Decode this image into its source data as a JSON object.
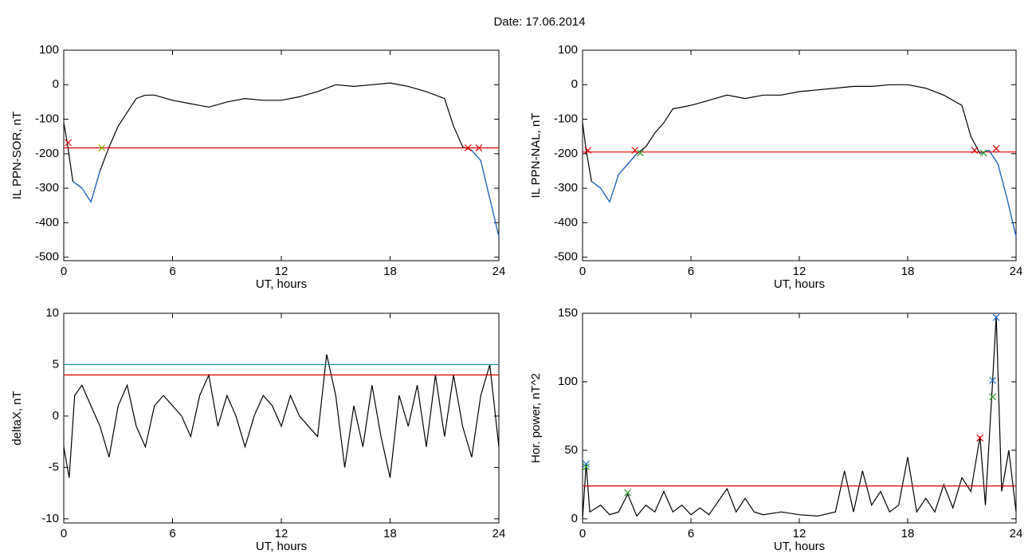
{
  "title": "Date:  17.06.2014",
  "chart_data": [
    {
      "type": "line",
      "xlabel": "UT, hours",
      "ylabel": "IL PPN-SOR, nT",
      "xlim": [
        0,
        24
      ],
      "ylim": [
        -510,
        100
      ],
      "xticks": [
        0,
        6,
        12,
        18,
        24
      ],
      "yticks": [
        100,
        0,
        -100,
        -200,
        -300,
        -400,
        -500
      ],
      "x": [
        0,
        0.2,
        0.5,
        1,
        1.5,
        2,
        2.5,
        3,
        3.5,
        4,
        4.5,
        5,
        6,
        7,
        8,
        9,
        10,
        11,
        12,
        13,
        14,
        15,
        16,
        17,
        18,
        19,
        20,
        21,
        21.5,
        22,
        22.5,
        23,
        23.5,
        24
      ],
      "series": [
        {
          "color": "#000000",
          "values": [
            -110,
            -170,
            -280,
            -300,
            -340,
            -250,
            -180,
            -120,
            -80,
            -40,
            -30,
            -30,
            -45,
            -55,
            -65,
            -50,
            -40,
            -45,
            -45,
            -35,
            -20,
            0,
            -5,
            0,
            5,
            -5,
            -20,
            -40,
            -120,
            -180,
            -190,
            -220,
            -330,
            -440
          ]
        },
        {
          "color": "#1f6fd6",
          "values": [
            null,
            null,
            -280,
            -300,
            -340,
            -250,
            null,
            null,
            null,
            null,
            null,
            null,
            null,
            null,
            null,
            null,
            null,
            null,
            null,
            null,
            null,
            null,
            null,
            null,
            null,
            null,
            null,
            null,
            null,
            null,
            -190,
            -220,
            -330,
            -440
          ]
        }
      ],
      "hlines": [
        {
          "value": -183,
          "color": "#e00000"
        }
      ],
      "markers": [
        {
          "x": 0.25,
          "y": -168,
          "color": "#e00000"
        },
        {
          "x": 2.1,
          "y": -183,
          "color": "#7ab800"
        },
        {
          "x": 22.3,
          "y": -183,
          "color": "#e00000"
        },
        {
          "x": 22.9,
          "y": -183,
          "color": "#e00000"
        }
      ]
    },
    {
      "type": "line",
      "xlabel": "UT, hours",
      "ylabel": "IL PPN-NAL, nT",
      "xlim": [
        0,
        24
      ],
      "ylim": [
        -510,
        100
      ],
      "xticks": [
        0,
        6,
        12,
        18,
        24
      ],
      "yticks": [
        100,
        0,
        -100,
        -200,
        -300,
        -400,
        -500
      ],
      "x": [
        0,
        0.2,
        0.5,
        1,
        1.5,
        2,
        2.5,
        3,
        3.5,
        4,
        4.5,
        5,
        6,
        7,
        8,
        9,
        10,
        11,
        12,
        13,
        14,
        15,
        16,
        17,
        18,
        19,
        20,
        21,
        21.5,
        22,
        22.5,
        23,
        23.5,
        24
      ],
      "series": [
        {
          "color": "#000000",
          "values": [
            -110,
            -190,
            -280,
            -300,
            -340,
            -260,
            -230,
            -200,
            -180,
            -140,
            -110,
            -70,
            -60,
            -45,
            -30,
            -40,
            -30,
            -30,
            -20,
            -15,
            -10,
            -5,
            -5,
            0,
            0,
            -10,
            -30,
            -60,
            -150,
            -200,
            -190,
            -230,
            -330,
            -440
          ]
        },
        {
          "color": "#1f6fd6",
          "values": [
            null,
            null,
            -280,
            -300,
            -340,
            -260,
            -230,
            -200,
            null,
            null,
            null,
            null,
            null,
            null,
            null,
            null,
            null,
            null,
            null,
            null,
            null,
            null,
            null,
            null,
            null,
            null,
            null,
            null,
            null,
            -200,
            -190,
            -230,
            -330,
            -440
          ]
        }
      ],
      "hlines": [
        {
          "value": -195,
          "color": "#e00000"
        }
      ],
      "markers": [
        {
          "x": 0.3,
          "y": -190,
          "color": "#e00000"
        },
        {
          "x": 2.9,
          "y": -190,
          "color": "#e00000"
        },
        {
          "x": 3.2,
          "y": -198,
          "color": "#2ca02c"
        },
        {
          "x": 21.7,
          "y": -190,
          "color": "#e00000"
        },
        {
          "x": 22.2,
          "y": -198,
          "color": "#2ca02c"
        },
        {
          "x": 22.9,
          "y": -185,
          "color": "#e00000"
        }
      ]
    },
    {
      "type": "line",
      "xlabel": "UT, hours",
      "ylabel": "deltaX, nT",
      "xlim": [
        0,
        24
      ],
      "ylim": [
        -10.4,
        10
      ],
      "xticks": [
        0,
        6,
        12,
        18,
        24
      ],
      "yticks": [
        10,
        5,
        0,
        -5,
        -10
      ],
      "x": [
        0,
        0.3,
        0.6,
        1,
        1.5,
        2,
        2.5,
        3,
        3.5,
        4,
        4.5,
        5,
        5.5,
        6,
        6.5,
        7,
        7.5,
        8,
        8.5,
        9,
        9.5,
        10,
        10.5,
        11,
        11.5,
        12,
        12.5,
        13,
        13.5,
        14,
        14.5,
        15,
        15.5,
        16,
        16.5,
        17,
        17.5,
        18,
        18.5,
        19,
        19.5,
        20,
        20.5,
        21,
        21.5,
        22,
        22.5,
        23,
        23.5,
        24
      ],
      "series": [
        {
          "color": "#000000",
          "values": [
            -3,
            -6,
            2,
            3,
            1,
            -1,
            -4,
            1,
            3,
            -1,
            -3,
            1,
            2,
            1,
            0,
            -2,
            2,
            4,
            -1,
            2,
            0,
            -3,
            0,
            2,
            1,
            -1,
            2,
            0,
            -1,
            -2,
            6,
            2,
            -5,
            1,
            -3,
            3,
            -2,
            -6,
            2,
            -1,
            3,
            -3,
            4,
            -2,
            4,
            -1,
            -4,
            2,
            5,
            -3
          ]
        }
      ],
      "hlines": [
        {
          "value": 5,
          "color": "#1a8a9a"
        },
        {
          "value": 4,
          "color": "#e00000"
        }
      ],
      "markers": []
    },
    {
      "type": "line",
      "xlabel": "UT, hours",
      "ylabel": "Hor. power, nT^2",
      "xlim": [
        0,
        24
      ],
      "ylim": [
        -3,
        150
      ],
      "xticks": [
        0,
        6,
        12,
        18,
        24
      ],
      "yticks": [
        0,
        50,
        100,
        150
      ],
      "x": [
        0,
        0.2,
        0.4,
        1,
        1.5,
        2,
        2.5,
        3,
        3.5,
        4,
        4.5,
        5,
        5.5,
        6,
        6.5,
        7,
        8,
        8.5,
        9,
        9.5,
        10,
        11,
        12,
        13,
        14,
        14.5,
        15,
        15.5,
        16,
        16.5,
        17,
        17.5,
        18,
        18.5,
        19,
        19.5,
        20,
        20.5,
        21,
        21.5,
        22,
        22.3,
        22.7,
        22.9,
        23.2,
        23.6,
        24
      ],
      "series": [
        {
          "color": "#000000",
          "values": [
            0,
            40,
            5,
            10,
            3,
            5,
            18,
            2,
            10,
            5,
            20,
            5,
            10,
            3,
            8,
            3,
            22,
            5,
            15,
            5,
            3,
            5,
            3,
            2,
            5,
            35,
            5,
            35,
            10,
            20,
            5,
            10,
            45,
            5,
            15,
            5,
            25,
            8,
            30,
            20,
            60,
            10,
            100,
            148,
            20,
            50,
            5
          ]
        }
      ],
      "hlines": [
        {
          "value": 24,
          "color": "#e00000"
        }
      ],
      "markers": [
        {
          "x": 0.2,
          "y": 40,
          "color": "#1f6fd6"
        },
        {
          "x": 0.2,
          "y": 38,
          "color": "#2ca02c"
        },
        {
          "x": 2.5,
          "y": 19,
          "color": "#2ca02c"
        },
        {
          "x": 22,
          "y": 59,
          "color": "#e00000"
        },
        {
          "x": 22.7,
          "y": 101,
          "color": "#1f6fd6"
        },
        {
          "x": 22.9,
          "y": 147,
          "color": "#1f6fd6"
        },
        {
          "x": 22.7,
          "y": 89,
          "color": "#2ca02c"
        }
      ]
    }
  ]
}
